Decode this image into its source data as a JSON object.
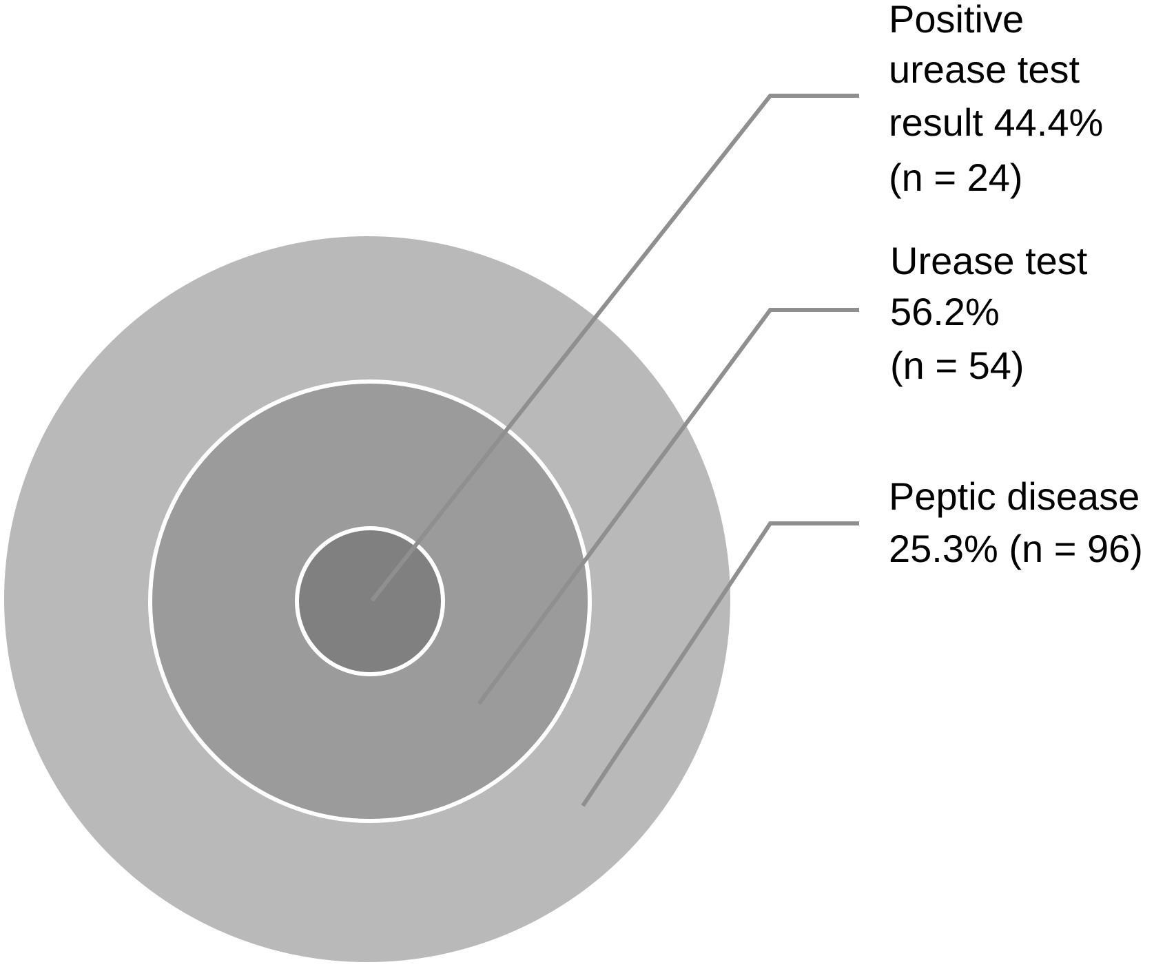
{
  "diagram": {
    "colors": {
      "outer_ring": "#b9b9b9",
      "middle_ring": "#9b9b9b",
      "inner_circle": "#808080",
      "ring_border": "#ffffff",
      "leader_line": "#8f8f8f",
      "text": "#000000"
    },
    "levels": [
      {
        "id": "positive-urease",
        "lines": [
          "Positive",
          "urease test",
          "result 44.4%",
          "(n = 24)"
        ]
      },
      {
        "id": "urease-test",
        "lines": [
          "Urease test",
          "56.2%",
          "(n = 54)"
        ]
      },
      {
        "id": "peptic-disease",
        "lines": [
          "Peptic disease",
          "25.3% (n = 96)"
        ]
      }
    ]
  }
}
